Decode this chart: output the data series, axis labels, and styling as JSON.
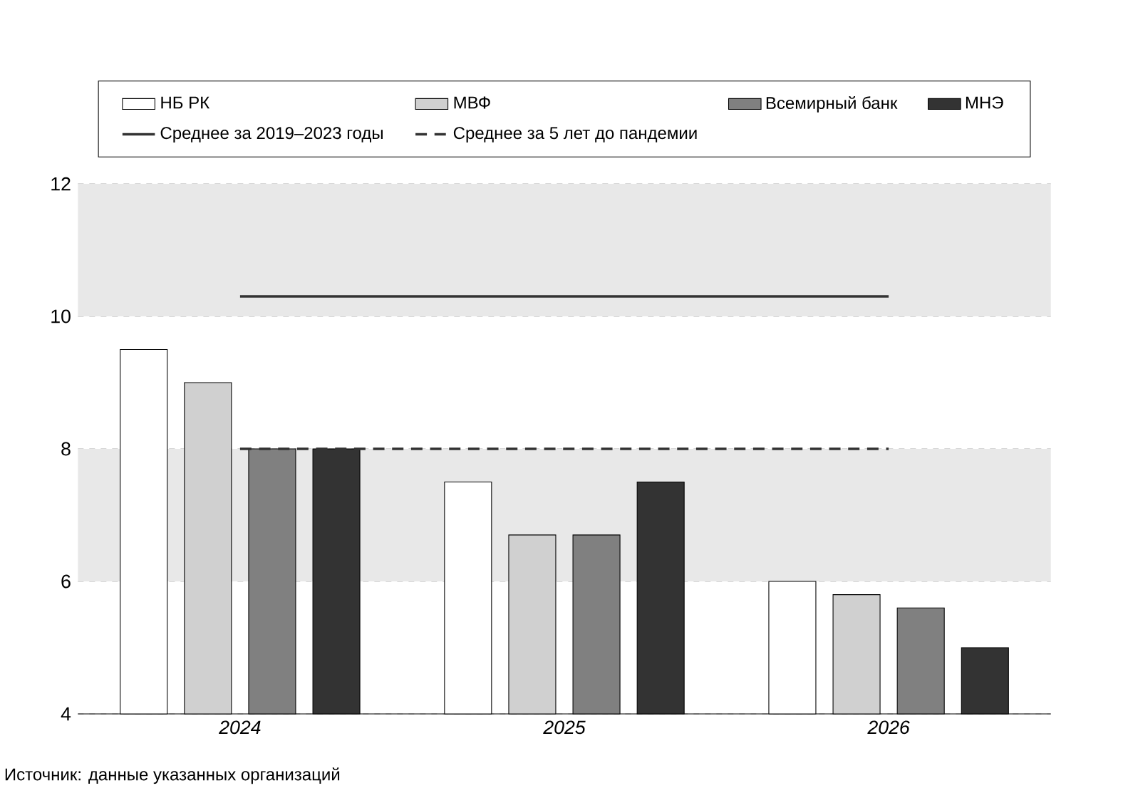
{
  "chart_data": {
    "type": "bar",
    "categories": [
      "2024",
      "2025",
      "2026"
    ],
    "series": [
      {
        "name": "НБ РК",
        "color": "#ffffff",
        "values": [
          9.5,
          7.5,
          6.0
        ]
      },
      {
        "name": "МВФ",
        "color": "#d0d0d0",
        "values": [
          9.0,
          6.7,
          5.8
        ]
      },
      {
        "name": "Всемирный банк",
        "color": "#808080",
        "values": [
          8.0,
          6.7,
          5.6
        ]
      },
      {
        "name": "МНЭ",
        "color": "#333333",
        "values": [
          8.0,
          7.5,
          5.0
        ]
      },
      {
        "name": "Среднее за 2019–2023 годы",
        "type": "line",
        "line_style": "solid",
        "color": "#333333",
        "values": [
          10.3,
          10.3,
          10.3
        ]
      },
      {
        "name": "Среднее за 5 лет до пандемии",
        "type": "line",
        "line_style": "dashed",
        "color": "#333333",
        "values": [
          8.0,
          8.0,
          8.0
        ]
      }
    ],
    "ylim": [
      4,
      12
    ],
    "yticks": [
      4,
      6,
      8,
      10,
      12
    ],
    "grid": "y",
    "legend": "top",
    "marker": "none",
    "bands": [
      {
        "axis": "y",
        "from": 10,
        "to": 12,
        "color": "#e8e8e8"
      },
      {
        "axis": "y",
        "from": 6,
        "to": 8,
        "color": "#e8e8e8"
      }
    ],
    "annotations": [
      "Источник: данные указанных организаций"
    ]
  }
}
